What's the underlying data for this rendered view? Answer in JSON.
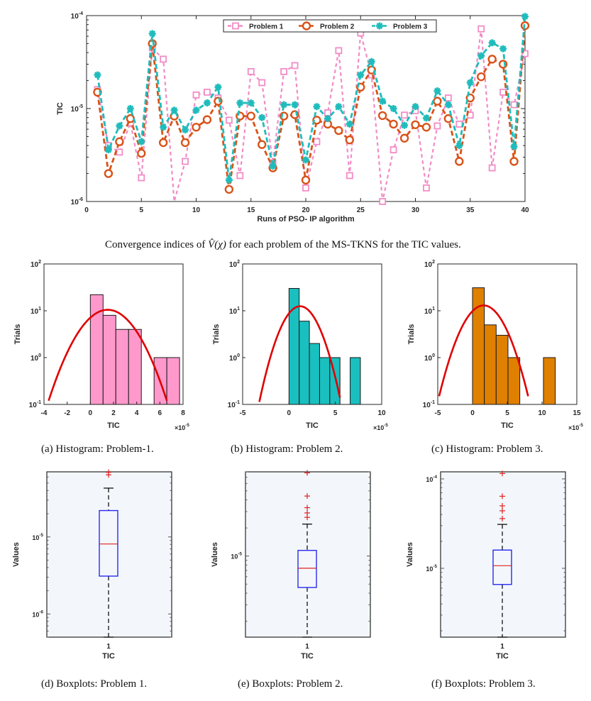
{
  "chart_data": [
    {
      "id": "convergence",
      "type": "line",
      "title": "",
      "xlabel": "Runs of PSO- IP algorithm",
      "ylabel": "TIC",
      "xlim": [
        0,
        40
      ],
      "ylim": [
        1e-06,
        0.0001
      ],
      "yscale": "log",
      "xticks": [
        "0",
        "5",
        "10",
        "15",
        "20",
        "25",
        "30",
        "35",
        "40"
      ],
      "yticks": [
        "10^-6",
        "10^-5",
        "10^-4"
      ],
      "legend_position": "top-center",
      "x": [
        1,
        2,
        3,
        4,
        5,
        6,
        7,
        8,
        9,
        10,
        11,
        12,
        13,
        14,
        15,
        16,
        17,
        18,
        19,
        20,
        21,
        22,
        23,
        24,
        25,
        26,
        27,
        28,
        29,
        30,
        31,
        32,
        33,
        34,
        35,
        36,
        37,
        38,
        39,
        40
      ],
      "series": [
        {
          "name": "Problem 1",
          "color": "#f28cc6",
          "marker": "square",
          "values": [
            1.6e-05,
            4e-06,
            3.4e-06,
            7e-06,
            1.8e-06,
            4.5e-05,
            3.4e-05,
            9e-07,
            2.7e-06,
            1.4e-05,
            1.5e-05,
            1.3e-05,
            7.5e-06,
            1.9e-06,
            2.5e-05,
            1.9e-05,
            2.6e-06,
            2.5e-05,
            2.9e-05,
            1.4e-06,
            4.4e-06,
            9e-06,
            4.2e-05,
            1.9e-06,
            6.5e-05,
            2.3e-05,
            1e-06,
            3.6e-06,
            8.5e-06,
            9.5e-06,
            1.4e-06,
            6.5e-06,
            1.3e-05,
            6.8e-06,
            8.5e-06,
            7.2e-05,
            2.3e-06,
            1.5e-05,
            1.1e-05,
            3.9e-05
          ]
        },
        {
          "name": "Problem 2",
          "color": "#d95319",
          "marker": "circle",
          "values": [
            1.5e-05,
            2e-06,
            4.4e-06,
            7.8e-06,
            3.3e-06,
            5e-05,
            4.3e-06,
            8.3e-06,
            4.3e-06,
            6.3e-06,
            7.6e-06,
            1.2e-05,
            1.35e-06,
            8.3e-06,
            8.3e-06,
            4.1e-06,
            2.3e-06,
            8.3e-06,
            8.6e-06,
            1.7e-06,
            7.5e-06,
            6.8e-06,
            5.8e-06,
            4.6e-06,
            1.7e-05,
            2.6e-05,
            8.4e-06,
            6.8e-06,
            4.8e-06,
            6.7e-06,
            6.3e-06,
            1.2e-05,
            7.8e-06,
            2.7e-06,
            1.3e-05,
            2.2e-05,
            3.4e-05,
            3e-05,
            2.7e-06,
            7.8e-05
          ]
        },
        {
          "name": "Problem 3",
          "color": "#1fbcbc",
          "marker": "asterisk",
          "values": [
            2.3e-05,
            3.6e-06,
            6.5e-06,
            1e-05,
            4.4e-06,
            6.4e-05,
            6.3e-06,
            9.6e-06,
            5.9e-06,
            9.6e-06,
            1.15e-05,
            1.7e-05,
            1.7e-06,
            1.15e-05,
            1.15e-05,
            8e-06,
            2.4e-06,
            1.1e-05,
            1.1e-05,
            2.8e-06,
            1.05e-05,
            7.8e-06,
            1.05e-05,
            6.8e-06,
            2.3e-05,
            3.2e-05,
            1.2e-05,
            1e-05,
            6.6e-06,
            1.05e-05,
            7.9e-06,
            1.55e-05,
            1.1e-05,
            4e-06,
            1.9e-05,
            3.7e-05,
            5.1e-05,
            4.4e-05,
            3.9e-06,
            9.8e-05
          ]
        }
      ]
    },
    {
      "id": "hist-1",
      "type": "bar",
      "subtype": "histogram",
      "title": "",
      "xlabel": "TIC",
      "ylabel": "Trials",
      "xlim": [
        -4,
        8
      ],
      "x_multiplier": "×10^-5",
      "ylim": [
        0.1,
        100
      ],
      "yscale": "log",
      "xticks": [
        "-4",
        "-2",
        "0",
        "2",
        "4",
        "6",
        "8"
      ],
      "yticks": [
        "10^-1",
        "10^0",
        "10^1",
        "10^2"
      ],
      "bar_color": "#ff99cc",
      "bins": [
        [
          0,
          1.1
        ],
        [
          1.1,
          2.2
        ],
        [
          2.2,
          3.3
        ],
        [
          3.3,
          4.4
        ],
        [
          5.5,
          6.6
        ],
        [
          6.6,
          7.7
        ]
      ],
      "values": [
        22,
        8,
        4,
        4,
        1,
        1
      ],
      "fit": {
        "type": "normal",
        "color": "#e00000",
        "mean": 1.5,
        "peak": 10.5,
        "x_range": [
          -3.6,
          6.6
        ],
        "end_value": 0.12
      }
    },
    {
      "id": "hist-2",
      "type": "bar",
      "subtype": "histogram",
      "title": "",
      "xlabel": "TIC",
      "ylabel": "Trials",
      "xlim": [
        -5,
        10
      ],
      "x_multiplier": "×10^-5",
      "ylim": [
        0.1,
        100
      ],
      "yscale": "log",
      "xticks": [
        "-5",
        "0",
        "5",
        "10"
      ],
      "yticks": [
        "10^-1",
        "10^0",
        "10^1",
        "10^2"
      ],
      "bar_color": "#1abfbf",
      "bins": [
        [
          0,
          1.1
        ],
        [
          1.1,
          2.2
        ],
        [
          2.2,
          3.3
        ],
        [
          3.3,
          4.4
        ],
        [
          4.4,
          5.5
        ],
        [
          6.6,
          7.7
        ]
      ],
      "values": [
        30,
        6,
        2,
        1,
        1,
        1
      ],
      "fit": {
        "type": "normal",
        "color": "#e00000",
        "mean": 1.2,
        "peak": 12.5,
        "x_range": [
          -3.2,
          5.5
        ],
        "end_value": 0.14
      }
    },
    {
      "id": "hist-3",
      "type": "bar",
      "subtype": "histogram",
      "title": "",
      "xlabel": "TIC",
      "ylabel": "Trials",
      "xlim": [
        -5,
        15
      ],
      "x_multiplier": "×10^-5",
      "ylim": [
        0.1,
        100
      ],
      "yscale": "log",
      "xticks": [
        "-5",
        "0",
        "5",
        "10",
        "15"
      ],
      "yticks": [
        "10^-1",
        "10^0",
        "10^1",
        "10^2"
      ],
      "bar_color": "#e08000",
      "bins": [
        [
          0,
          1.7
        ],
        [
          1.7,
          3.4
        ],
        [
          3.4,
          5.1
        ],
        [
          5.1,
          6.8
        ],
        [
          10.2,
          11.9
        ]
      ],
      "values": [
        31,
        5,
        3,
        1,
        1
      ],
      "fit": {
        "type": "normal",
        "color": "#e00000",
        "mean": 1.6,
        "peak": 13,
        "x_range": [
          -4.8,
          8.0
        ],
        "end_value": 0.15
      }
    },
    {
      "id": "box-1",
      "type": "box",
      "title": "",
      "xlabel": "TIC",
      "ylabel": "Values",
      "xticks": [
        "1"
      ],
      "yscale": "log",
      "ylim": [
        5e-07,
        7e-05
      ],
      "yticks": [
        "10^-6",
        "10^-5"
      ],
      "ytick_values": [
        1e-06,
        1e-05
      ],
      "box": {
        "min": 5e-07,
        "q1": 3.1e-06,
        "median": 8.1e-06,
        "q3": 2.2e-05,
        "max": 4.3e-05,
        "outliers": [
          6.4e-05,
          6.9e-05
        ]
      }
    },
    {
      "id": "box-2",
      "type": "box",
      "title": "",
      "xlabel": "TIC",
      "ylabel": "Values",
      "xticks": [
        "1"
      ],
      "yscale": "log",
      "ylim": [
        1.35e-06,
        8e-05
      ],
      "yticks": [
        "10^-5"
      ],
      "ytick_values": [
        1e-05
      ],
      "box": {
        "min": 1.35e-06,
        "q1": 4.6e-06,
        "median": 7.4e-06,
        "q3": 1.15e-05,
        "max": 2.2e-05,
        "outliers": [
          2.6e-05,
          2.9e-05,
          3.3e-05,
          4.4e-05,
          7.8e-05
        ]
      }
    },
    {
      "id": "box-3",
      "type": "box",
      "title": "",
      "xlabel": "TIC",
      "ylabel": "Values",
      "xticks": [
        "1"
      ],
      "yscale": "log",
      "ylim": [
        1.7e-06,
        0.00012
      ],
      "yticks": [
        "10^-5",
        "10^-4"
      ],
      "ytick_values": [
        1e-05,
        0.0001
      ],
      "box": {
        "min": 1.7e-06,
        "q1": 6.6e-06,
        "median": 1.07e-05,
        "q3": 1.6e-05,
        "max": 3.1e-05,
        "outliers": [
          3.6e-05,
          4.4e-05,
          5e-05,
          6.4e-05,
          0.000115
        ]
      }
    }
  ],
  "captions": {
    "main_prefix": "Convergence indices of ",
    "main_math": "V̂(χ)",
    "main_suffix": " for each problem of the MS-TKNS for the TIC values.",
    "a": "(a) Histogram: Problem-1.",
    "b": "(b) Histogram: Problem 2.",
    "c": "(c) Histogram: Problem 3.",
    "d": "(d) Boxplots: Problem 1.",
    "e": "(e) Boxplots: Problem 2.",
    "f": "(f) Boxplots: Problem 3."
  }
}
